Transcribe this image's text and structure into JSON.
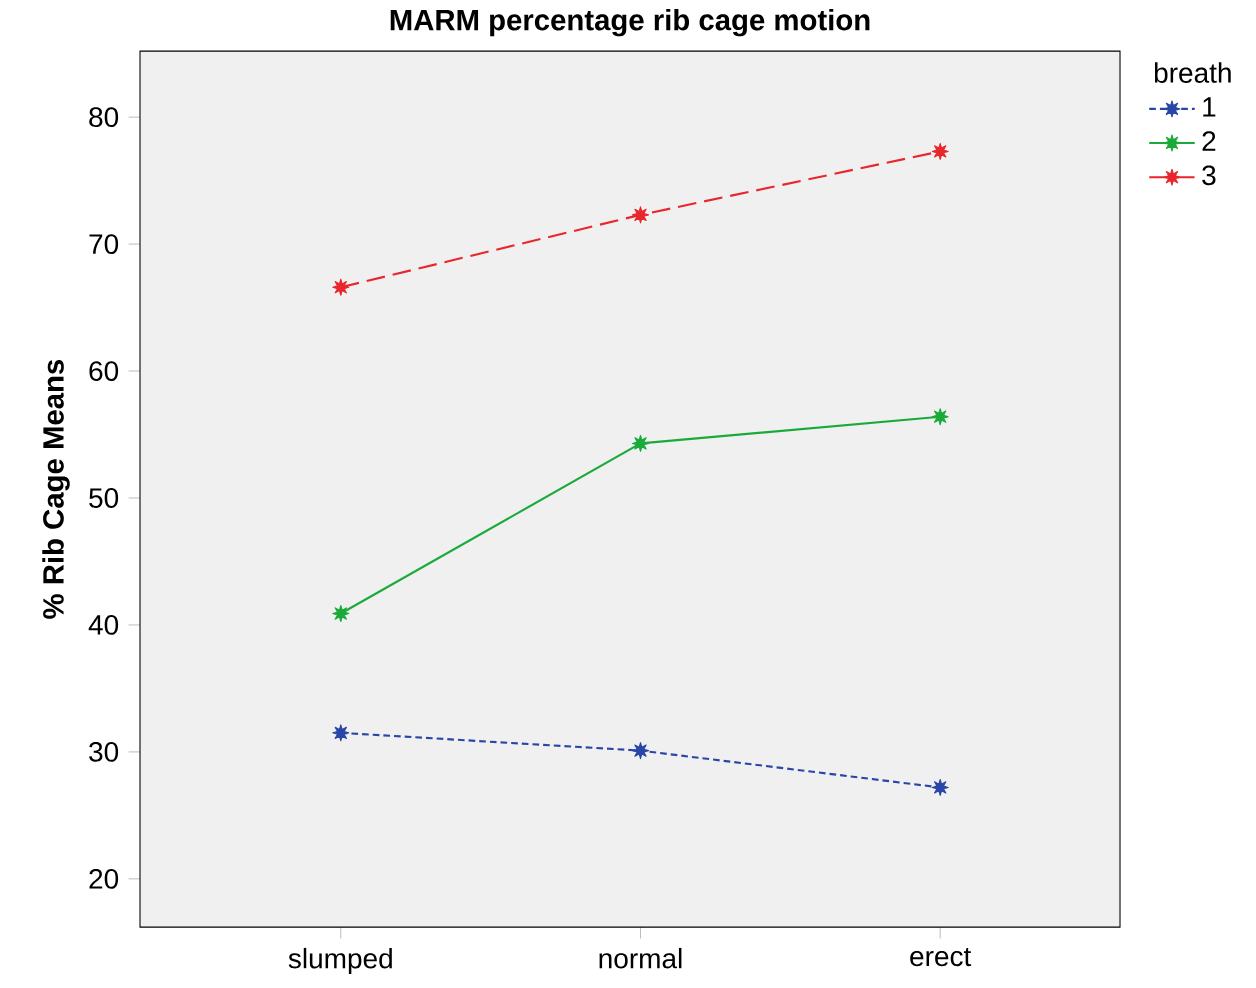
{
  "chart_data": {
    "type": "line",
    "title": "MARM percentage rib cage motion",
    "ylabel": "% Rib Cage Means",
    "legend_title": "breath",
    "categories": [
      "slumped",
      "normal",
      "erect"
    ],
    "series": [
      {
        "name": "1",
        "color": "#2a45a8",
        "values": [
          31.5,
          30.1,
          27.2
        ],
        "line_style": "dotted"
      },
      {
        "name": "2",
        "color": "#1aaa3a",
        "values": [
          40.9,
          54.3,
          56.4
        ],
        "line_style": "solid"
      },
      {
        "name": "3",
        "color": "#e8262b",
        "values": [
          66.6,
          72.3,
          77.3
        ],
        "line_style": "dashed"
      }
    ],
    "ylim": [
      16.2,
      85.2
    ],
    "yticks": [
      20,
      30,
      40,
      50,
      60,
      70,
      80
    ],
    "grid": false,
    "legend": "top right",
    "marker": "star"
  }
}
